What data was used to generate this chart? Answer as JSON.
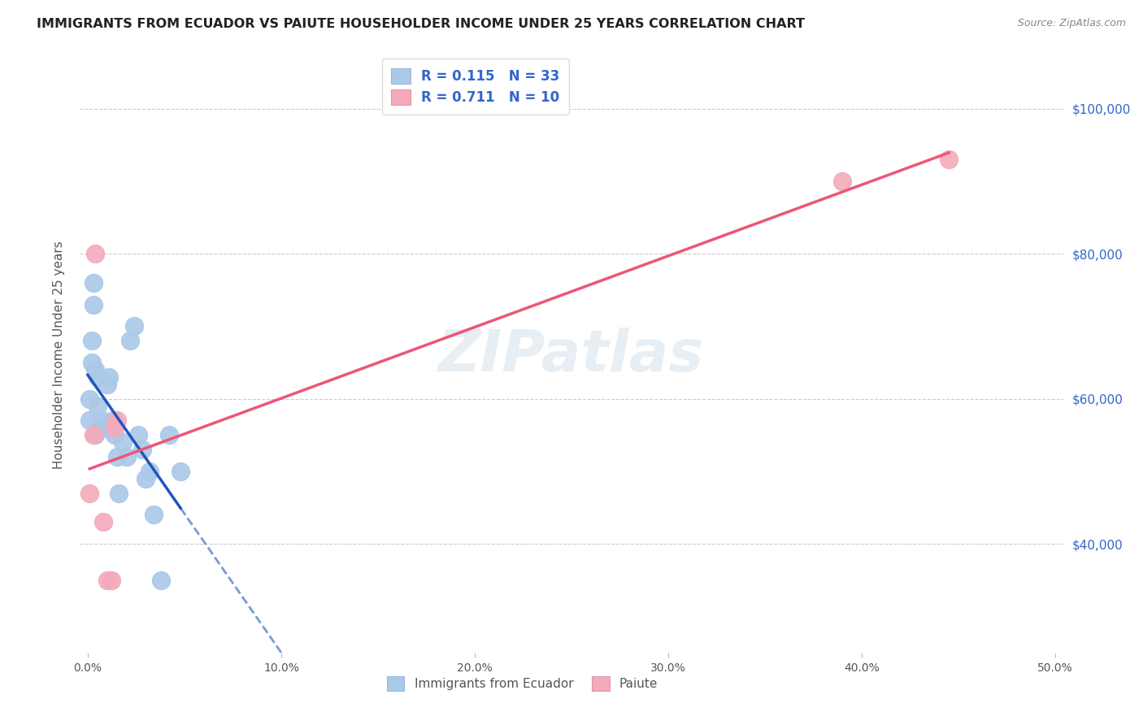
{
  "title": "IMMIGRANTS FROM ECUADOR VS PAIUTE HOUSEHOLDER INCOME UNDER 25 YEARS CORRELATION CHART",
  "source": "Source: ZipAtlas.com",
  "ylabel": "Householder Income Under 25 years",
  "ytick_labels": [
    "$40,000",
    "$60,000",
    "$80,000",
    "$100,000"
  ],
  "ytick_values": [
    40000,
    60000,
    80000,
    100000
  ],
  "xtick_labels": [
    "0.0%",
    "10.0%",
    "20.0%",
    "30.0%",
    "40.0%",
    "50.0%"
  ],
  "xtick_values": [
    0.0,
    0.1,
    0.2,
    0.3,
    0.4,
    0.5
  ],
  "watermark": "ZIPatlas",
  "ecuador_color": "#aac8e8",
  "paiute_color": "#f4aabb",
  "ecuador_line_color": "#2255bb",
  "paiute_line_color": "#ee5577",
  "ecuador_x": [
    0.001,
    0.001,
    0.002,
    0.002,
    0.003,
    0.003,
    0.004,
    0.004,
    0.005,
    0.005,
    0.006,
    0.007,
    0.008,
    0.009,
    0.01,
    0.011,
    0.012,
    0.013,
    0.014,
    0.015,
    0.016,
    0.018,
    0.02,
    0.022,
    0.024,
    0.026,
    0.028,
    0.03,
    0.032,
    0.034,
    0.038,
    0.042,
    0.048
  ],
  "ecuador_y": [
    57000,
    60000,
    65000,
    68000,
    73000,
    76000,
    64000,
    55000,
    63000,
    59000,
    56000,
    57000,
    56000,
    56000,
    62000,
    63000,
    56000,
    57000,
    55000,
    52000,
    47000,
    54000,
    52000,
    68000,
    70000,
    55000,
    53000,
    49000,
    50000,
    44000,
    35000,
    55000,
    50000
  ],
  "paiute_x": [
    0.001,
    0.003,
    0.004,
    0.008,
    0.01,
    0.012,
    0.014,
    0.015,
    0.39,
    0.445
  ],
  "paiute_y": [
    47000,
    55000,
    80000,
    43000,
    35000,
    35000,
    56000,
    57000,
    90000,
    93000
  ],
  "xlim": [
    -0.004,
    0.504
  ],
  "ylim": [
    25000,
    107000
  ],
  "figsize": [
    14.06,
    8.92
  ],
  "dpi": 100,
  "legend_line1_r": "R = 0.115",
  "legend_line1_n": "N = 33",
  "legend_line2_r": "R = 0.711",
  "legend_line2_n": "N = 10"
}
